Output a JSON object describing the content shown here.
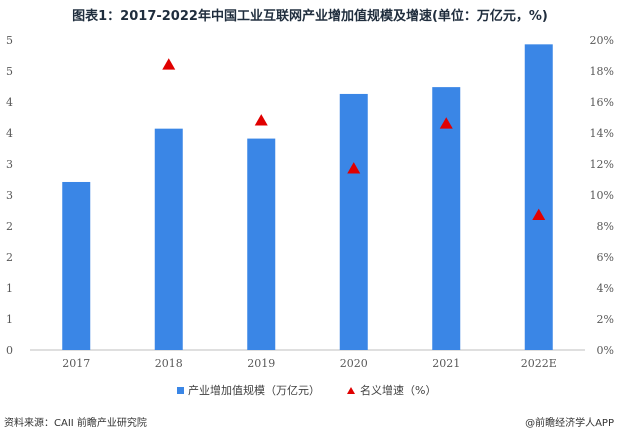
{
  "title": "图表1：2017-2022年中国工业互联网产业增加值规模及增速(单位：万亿元，%)",
  "footer": {
    "source": "资料来源：CAII  前瞻产业研究院",
    "brand": "@前瞻经济学人APP"
  },
  "chart_data": {
    "type": "bar",
    "title": "图表1：2017-2022年中国工业互联网产业增加值规模及增速(单位：万亿元，%)",
    "categories": [
      "2017",
      "2018",
      "2019",
      "2020",
      "2021",
      "2022E"
    ],
    "series": [
      {
        "name": "产业增加值规模（万亿元）",
        "type": "bar",
        "axis": "left",
        "color": "#3a86e6",
        "values": [
          2.71,
          3.57,
          3.41,
          4.13,
          4.24,
          4.93
        ]
      },
      {
        "name": "名义增速（%）",
        "type": "scatter",
        "marker": "triangle",
        "axis": "right",
        "color": "#e00000",
        "values": [
          null,
          18.4,
          14.8,
          11.7,
          14.6,
          8.7
        ]
      }
    ],
    "y_left": {
      "ticks": [
        "0",
        "1",
        "1",
        "2",
        "2",
        "3",
        "3",
        "4",
        "4",
        "5",
        "5"
      ],
      "ylim": [
        0,
        5
      ]
    },
    "y_right": {
      "ticks": [
        "0%",
        "2%",
        "4%",
        "6%",
        "8%",
        "10%",
        "12%",
        "14%",
        "16%",
        "18%",
        "20%"
      ],
      "ylim": [
        0,
        20
      ]
    },
    "grid": false,
    "legend": "bottom"
  }
}
